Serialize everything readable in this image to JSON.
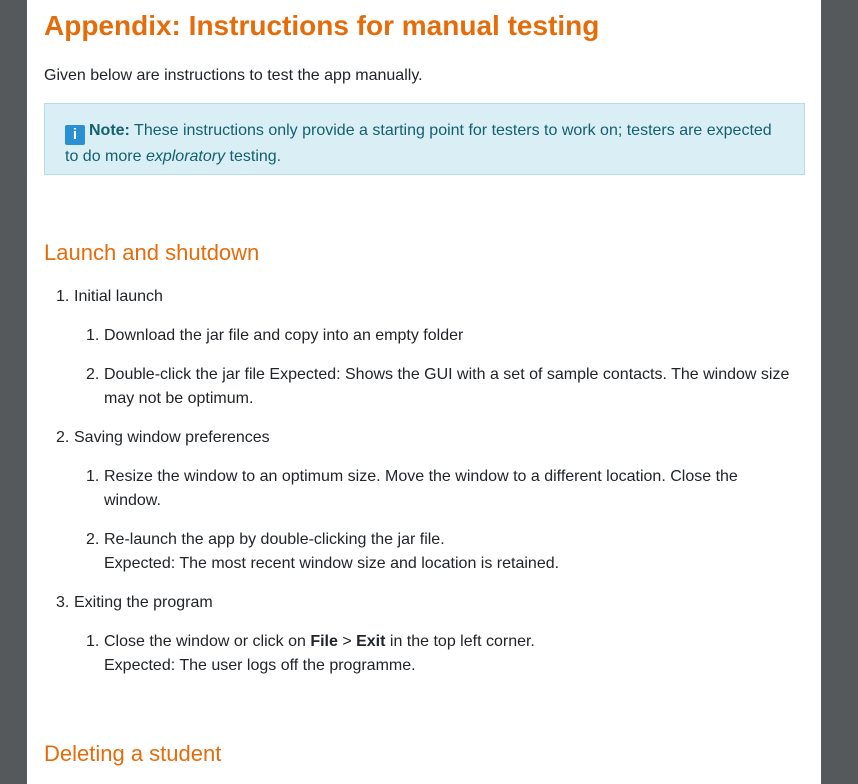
{
  "heading": "Appendix: Instructions for manual testing",
  "intro": "Given below are instructions to test the app manually.",
  "note": {
    "label": "Note:",
    "text_before": " These instructions only provide a starting point for testers to work on; testers are expected to do more ",
    "emphasis": "exploratory",
    "text_after": " testing."
  },
  "sections": {
    "launch": {
      "title": "Launch and shutdown",
      "item1": {
        "label": "Initial launch",
        "sub1": "Download the jar file and copy into an empty folder",
        "sub2": "Double-click the jar file Expected: Shows the GUI with a set of sample contacts. The window size may not be optimum."
      },
      "item2": {
        "label": "Saving window preferences",
        "sub1": "Resize the window to an optimum size. Move the window to a different location. Close the window.",
        "sub2_line1": "Re-launch the app by double-clicking the jar file.",
        "sub2_line2": "Expected: The most recent window size and location is retained."
      },
      "item3": {
        "label": "Exiting the program",
        "sub1_before": "Close the window or click on ",
        "sub1_file": "File",
        "sub1_sep": " > ",
        "sub1_exit": "Exit",
        "sub1_after": " in the top left corner.",
        "sub1_line2": "Expected: The user logs off the programme."
      }
    },
    "delete": {
      "title": "Deleting a student"
    }
  }
}
